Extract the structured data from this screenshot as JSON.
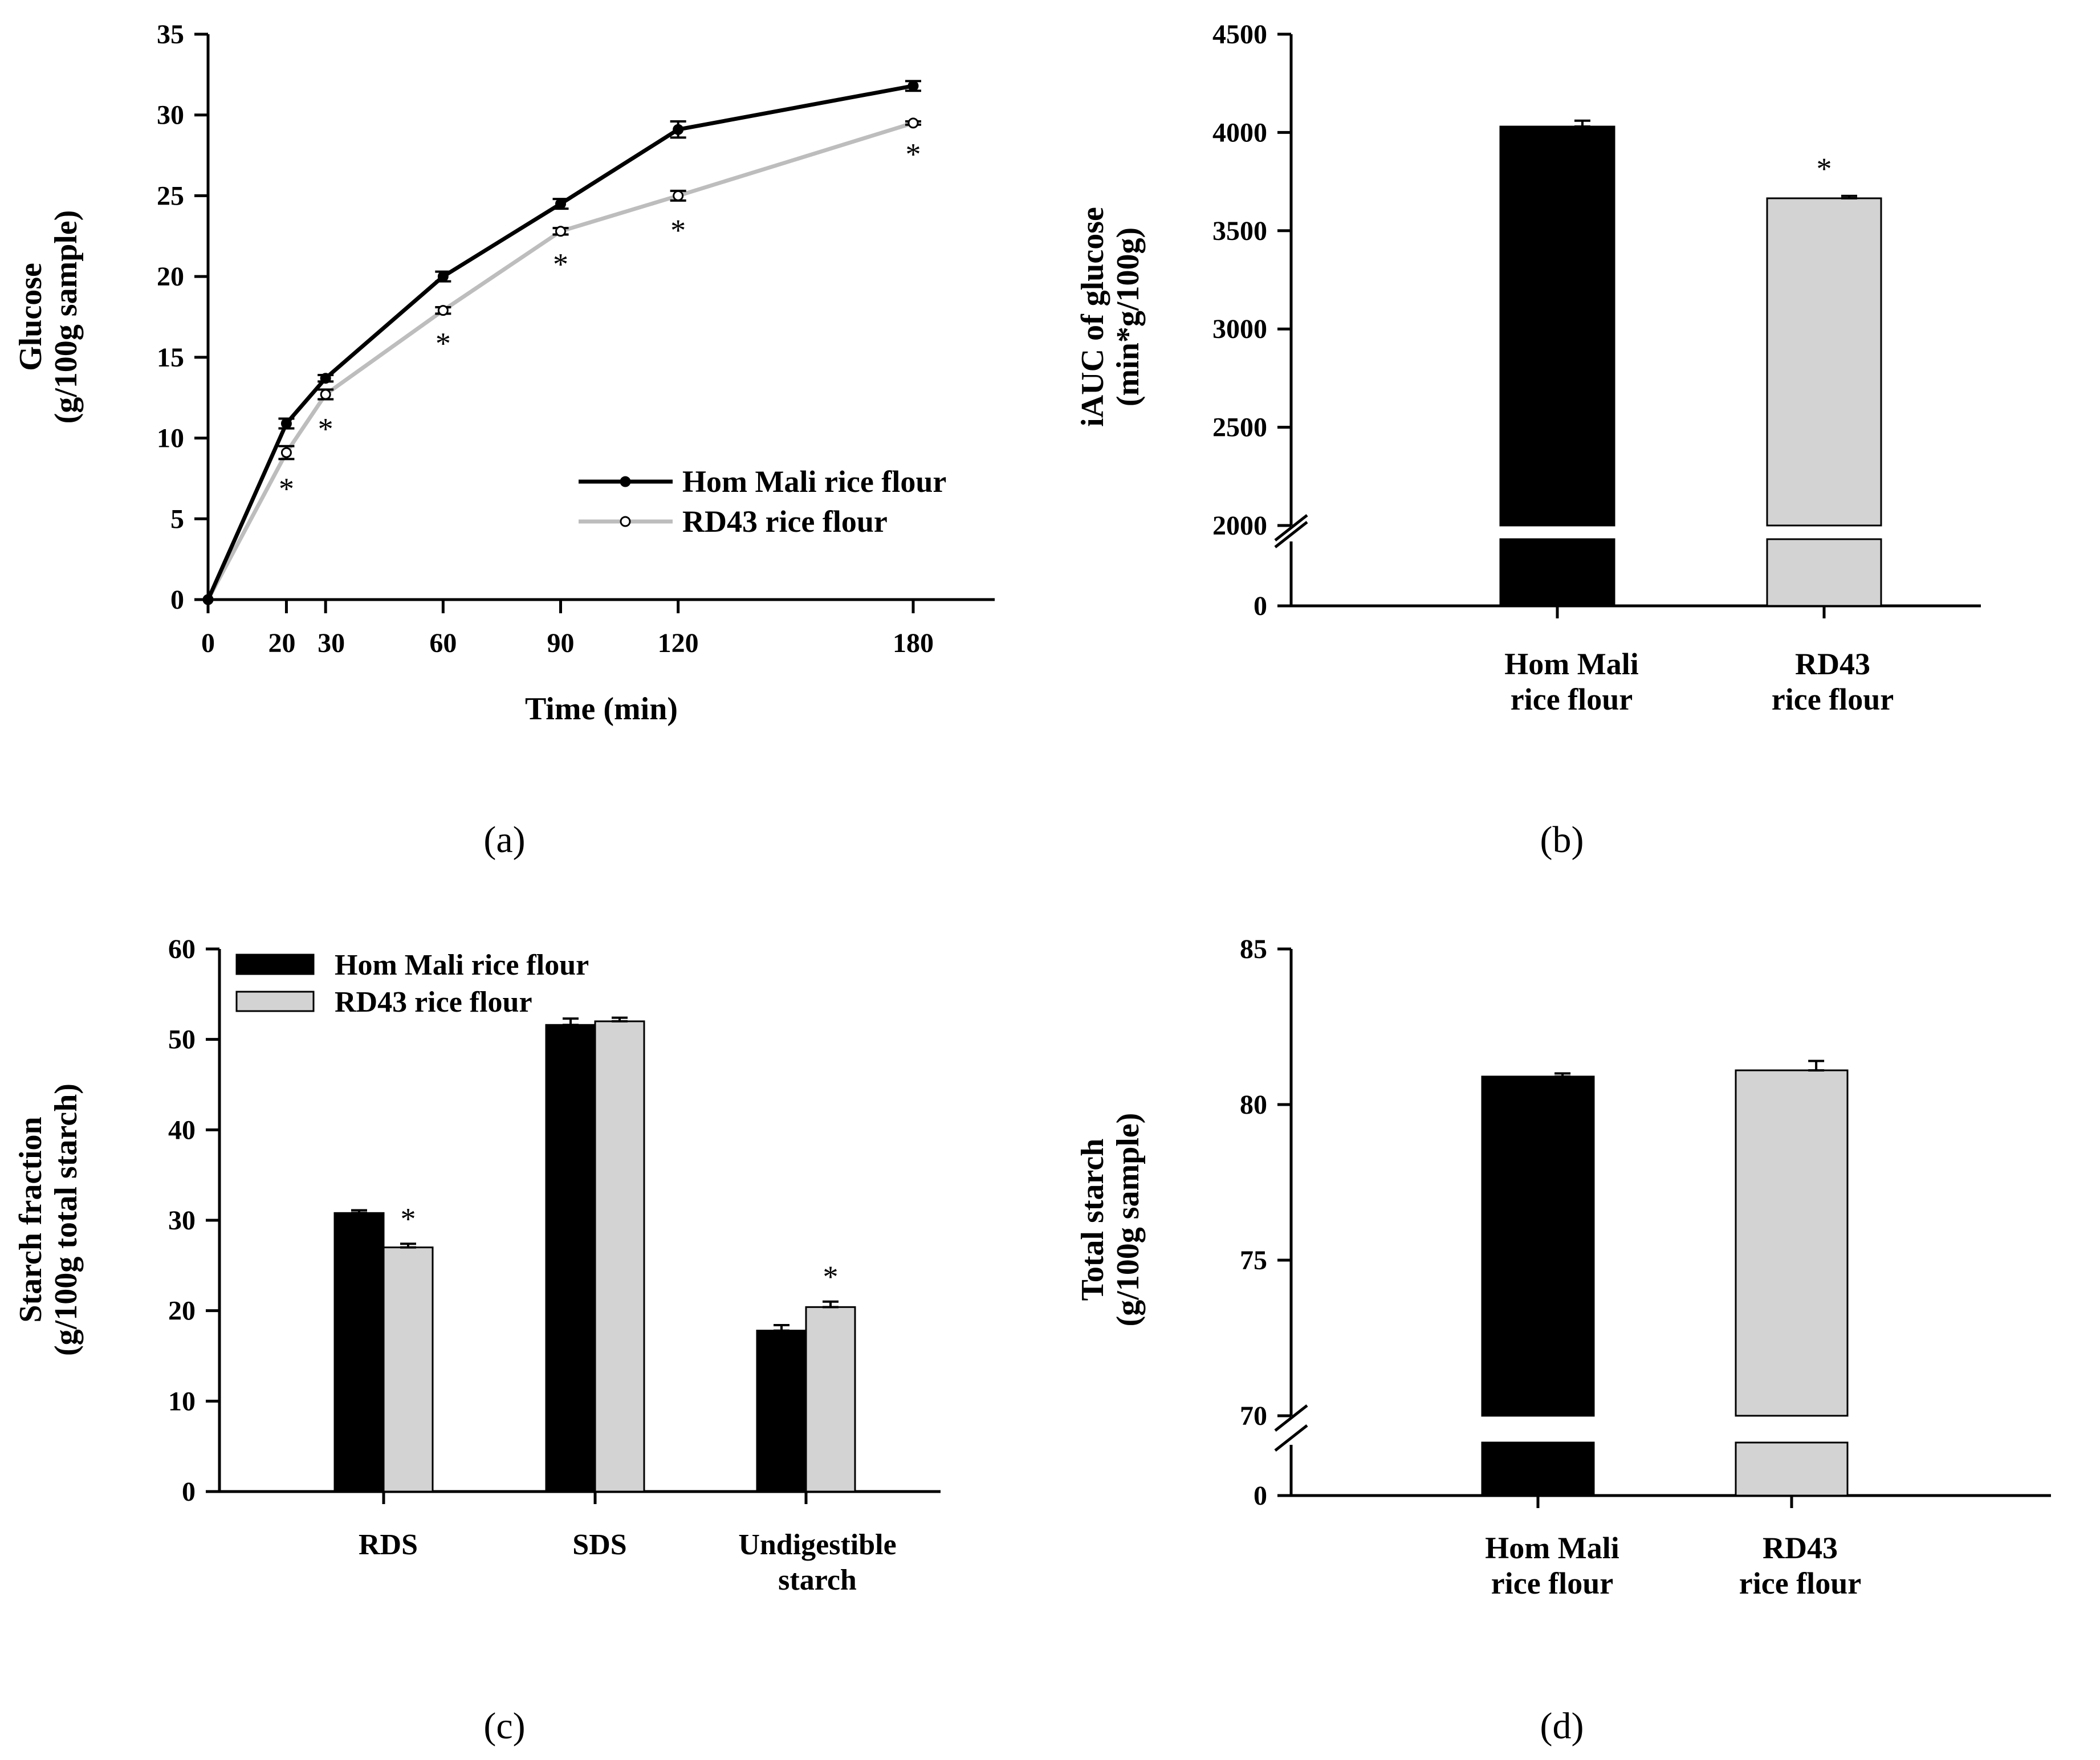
{
  "chart_data": [
    {
      "panel": "(a)",
      "type": "line",
      "xlabel": "Time (min)",
      "ylabel": [
        "Glucose",
        "(g/100g sample)"
      ],
      "xlim": [
        0,
        200
      ],
      "ylim": [
        0,
        35
      ],
      "xticks": [
        0,
        20,
        30,
        60,
        90,
        120,
        180
      ],
      "yticks": [
        0,
        5,
        10,
        15,
        20,
        25,
        30,
        35
      ],
      "legend_position": "bottom-right",
      "series": [
        {
          "name": "Hom Mali rice flour",
          "color": "#000000",
          "marker": "filled-circle",
          "x": [
            0,
            20,
            30,
            60,
            90,
            120,
            180
          ],
          "y": [
            0,
            10.9,
            13.7,
            20.0,
            24.5,
            29.1,
            31.8
          ],
          "err": [
            0,
            0.3,
            0.2,
            0.3,
            0.3,
            0.5,
            0.3
          ]
        },
        {
          "name": "RD43 rice flour",
          "color": "#bdbdbd",
          "marker": "open-circle",
          "x": [
            0,
            20,
            30,
            60,
            90,
            120,
            180
          ],
          "y": [
            0,
            9.1,
            12.7,
            17.9,
            22.8,
            25.0,
            29.5
          ],
          "err": [
            0,
            0.4,
            0.3,
            0.2,
            0.2,
            0.3,
            0.1
          ]
        }
      ],
      "annotations": [
        {
          "x": 20,
          "text": "*"
        },
        {
          "x": 30,
          "text": "*"
        },
        {
          "x": 60,
          "text": "*"
        },
        {
          "x": 90,
          "text": "*"
        },
        {
          "x": 120,
          "text": "*"
        },
        {
          "x": 180,
          "text": "*"
        }
      ]
    },
    {
      "panel": "(b)",
      "type": "bar",
      "ylabel": [
        "iAUC of glucose",
        "(min*g/100g)"
      ],
      "categories": [
        [
          "Hom Mali",
          "rice flour"
        ],
        [
          "RD43",
          "rice flour"
        ]
      ],
      "values": [
        4030,
        3665
      ],
      "err": [
        30,
        12
      ],
      "colors": [
        "#000000",
        "#d3d3d3"
      ],
      "ylim": [
        0,
        4500
      ],
      "axis_break": [
        0,
        2000
      ],
      "yticks": [
        0,
        2000,
        2500,
        3000,
        3500,
        4000,
        4500
      ],
      "annotations": [
        {
          "category": 1,
          "text": "*"
        }
      ]
    },
    {
      "panel": "(c)",
      "type": "bar",
      "ylabel": [
        "Starch fraction",
        "(g/100g total starch)"
      ],
      "categories": [
        [
          "RDS"
        ],
        [
          "SDS"
        ],
        [
          "Undigestible",
          "starch"
        ]
      ],
      "ylim": [
        0,
        60
      ],
      "yticks": [
        0,
        10,
        20,
        30,
        40,
        50,
        60
      ],
      "legend_position": "top-left",
      "series": [
        {
          "name": "Hom Mali rice flour",
          "color": "#000000",
          "values": [
            30.8,
            51.6,
            17.8
          ],
          "err": [
            0.3,
            0.7,
            0.6
          ]
        },
        {
          "name": "RD43 rice flour",
          "color": "#d3d3d3",
          "values": [
            27.0,
            52.0,
            20.4
          ],
          "err": [
            0.4,
            0.4,
            0.6
          ]
        }
      ],
      "annotations": [
        {
          "category": 0,
          "series": 1,
          "text": "*"
        },
        {
          "category": 2,
          "series": 1,
          "text": "*"
        }
      ]
    },
    {
      "panel": "(d)",
      "type": "bar",
      "ylabel": [
        "Total starch",
        "(g/100g sample)"
      ],
      "categories": [
        [
          "Hom Mali",
          "rice flour"
        ],
        [
          "RD43",
          "rice flour"
        ]
      ],
      "values": [
        80.9,
        81.1
      ],
      "err": [
        0.1,
        0.3
      ],
      "colors": [
        "#000000",
        "#d3d3d3"
      ],
      "ylim": [
        0,
        85
      ],
      "axis_break": [
        0,
        70
      ],
      "yticks": [
        0,
        70,
        75,
        80,
        85
      ]
    }
  ]
}
